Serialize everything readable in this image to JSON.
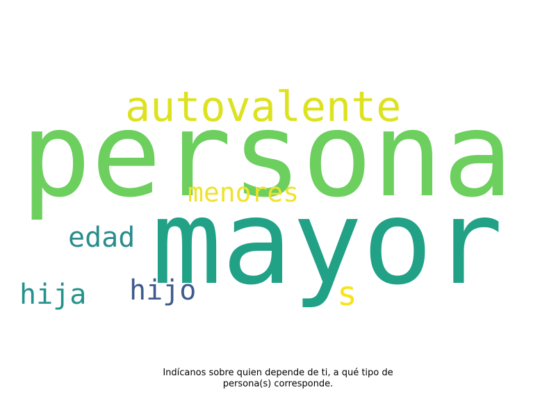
{
  "wordcloud": {
    "words": [
      {
        "text": "persona",
        "color": "#6ccf5e"
      },
      {
        "text": "mayor",
        "color": "#21a186"
      },
      {
        "text": "autovalente",
        "color": "#dde21e"
      },
      {
        "text": "menores",
        "color": "#efe22e"
      },
      {
        "text": "edad",
        "color": "#2a8c8c"
      },
      {
        "text": "hijo",
        "color": "#3f5a8e"
      },
      {
        "text": "hija",
        "color": "#24928b"
      },
      {
        "text": "s",
        "color": "#f8e319"
      }
    ]
  },
  "caption": {
    "line1": "Indícanos sobre quien depende de ti, a qué tipo de",
    "line2": "persona(s) corresponde."
  }
}
